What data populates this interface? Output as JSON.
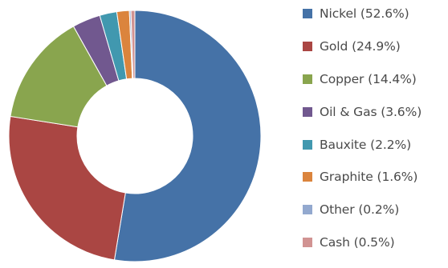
{
  "chart_data": {
    "type": "pie",
    "donut": true,
    "title": "",
    "legend_position": "right",
    "series": [
      {
        "name": "Nickel (52.6%)",
        "value": 52.6,
        "color": "#4572A7"
      },
      {
        "name": "Gold (24.9%)",
        "value": 24.9,
        "color": "#AA4643"
      },
      {
        "name": "Copper (14.4%)",
        "value": 14.4,
        "color": "#89A54E"
      },
      {
        "name": "Oil & Gas (3.6%)",
        "value": 3.6,
        "color": "#71588F"
      },
      {
        "name": "Bauxite (2.2%)",
        "value": 2.2,
        "color": "#4198AF"
      },
      {
        "name": "Graphite (1.6%)",
        "value": 1.6,
        "color": "#DB843D"
      },
      {
        "name": "Other (0.2%)",
        "value": 0.2,
        "color": "#93A9CF"
      },
      {
        "name": "Cash (0.5%)",
        "value": 0.5,
        "color": "#D19392"
      }
    ]
  }
}
